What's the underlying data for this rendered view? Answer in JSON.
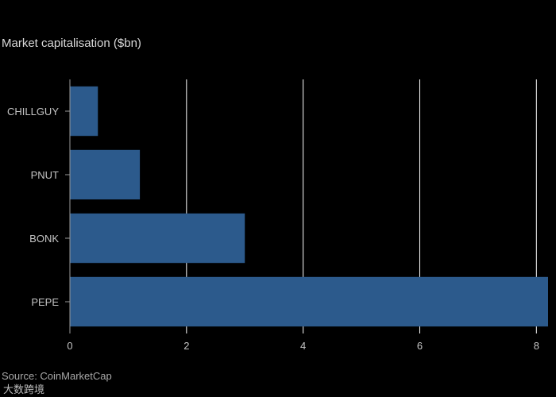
{
  "chart_data": {
    "type": "bar",
    "orientation": "horizontal",
    "title": "Market capitalisation ($bn)",
    "categories": [
      "CHILLGUY",
      "PNUT",
      "BONK",
      "PEPE"
    ],
    "values": [
      0.48,
      1.2,
      3.0,
      8.2
    ],
    "xlim": [
      0,
      8.2
    ],
    "xticks": [
      0,
      2,
      4,
      6,
      8
    ],
    "grid": true,
    "bar_color": "#2c5a8c"
  },
  "footer": {
    "source": "Source: CoinMarketCap",
    "watermark": "大数跨境"
  },
  "colors": {
    "background": "#000000",
    "gridline": "#ffffff",
    "text": "#c4c4c4"
  }
}
